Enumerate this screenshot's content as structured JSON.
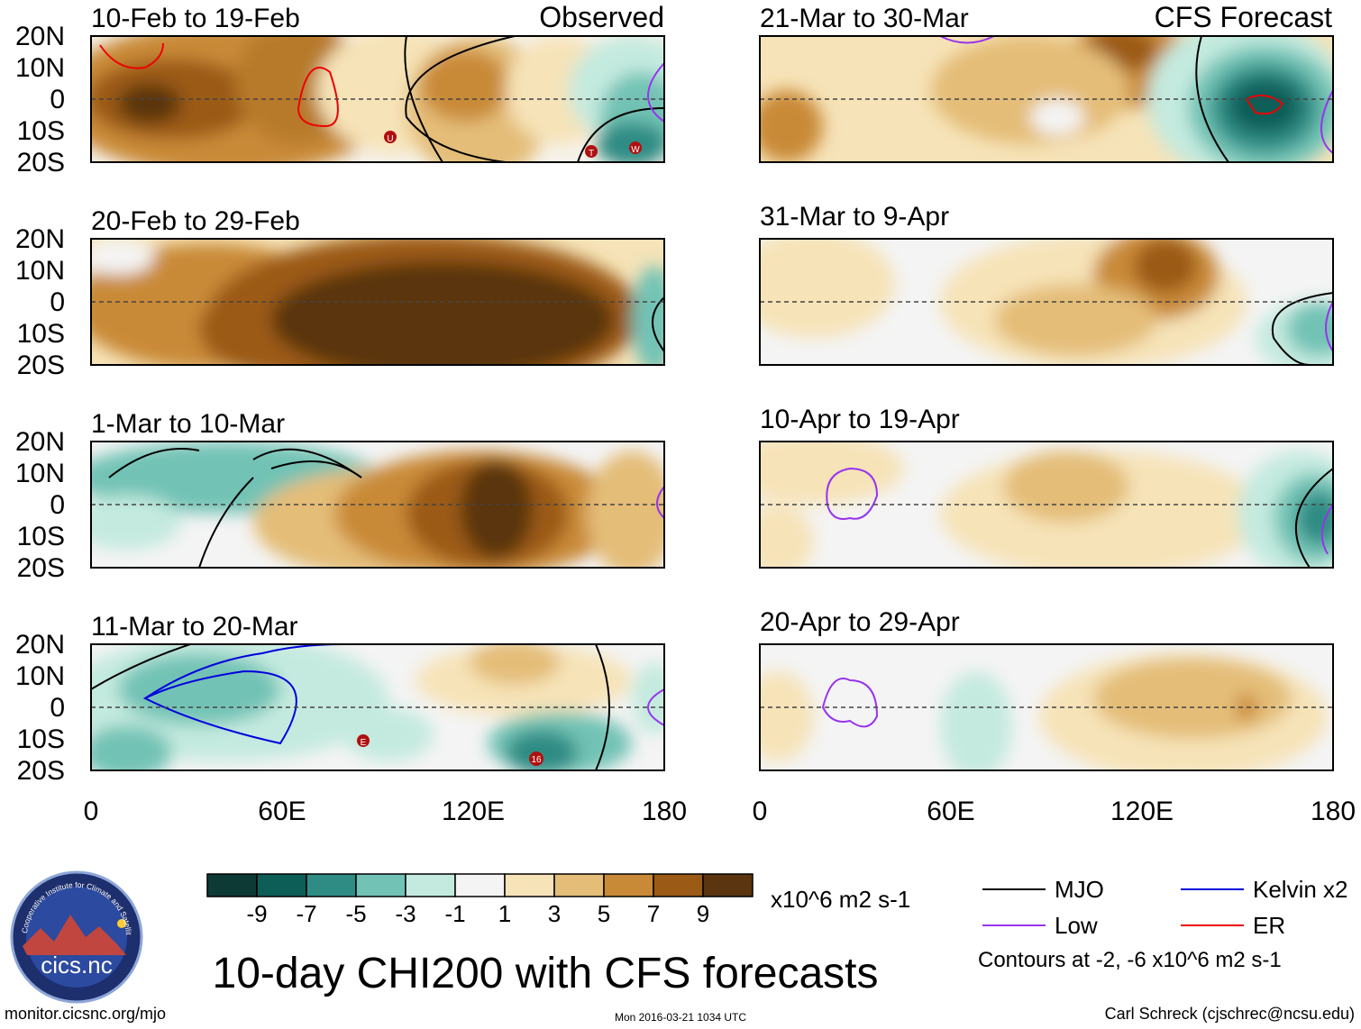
{
  "header": {
    "left_label": "Observed",
    "right_label": "CFS Forecast"
  },
  "panels": {
    "observed": [
      {
        "title": "10-Feb to 19-Feb"
      },
      {
        "title": "20-Feb to 29-Feb"
      },
      {
        "title": "1-Mar to 10-Mar"
      },
      {
        "title": "11-Mar to 20-Mar"
      }
    ],
    "forecast": [
      {
        "title": "21-Mar to 30-Mar"
      },
      {
        "title": "31-Mar to 9-Apr"
      },
      {
        "title": "10-Apr to 19-Apr"
      },
      {
        "title": "20-Apr to 29-Apr"
      }
    ]
  },
  "axes": {
    "y_ticks": [
      "20N",
      "10N",
      "0",
      "10S",
      "20S"
    ],
    "x_ticks": [
      "0",
      "60E",
      "120E",
      "180"
    ]
  },
  "storm_markers": {
    "p1": [
      {
        "label": "U"
      },
      {
        "label": "T"
      },
      {
        "label": "W"
      }
    ],
    "p4": [
      {
        "label": "E"
      },
      {
        "label": "16"
      }
    ]
  },
  "colorbar": {
    "labels": [
      "-9",
      "-7",
      "-5",
      "-3",
      "-1",
      "1",
      "3",
      "5",
      "7",
      "9"
    ],
    "colors": [
      "#0e3a36",
      "#0e5e58",
      "#2f8c84",
      "#72c3b5",
      "#c4eadf",
      "#f4f4f4",
      "#f6e3b8",
      "#e4bd78",
      "#c98a38",
      "#9b5a16",
      "#5a3510"
    ],
    "units": "x10^6 m2 s-1"
  },
  "legend": {
    "items": [
      {
        "label": "MJO",
        "color": "#000000"
      },
      {
        "label": "Kelvin x2",
        "color": "#0000dd"
      },
      {
        "label": "Low",
        "color": "#9933ee"
      },
      {
        "label": "ER",
        "color": "#ee0000"
      }
    ],
    "contours_note": "Contours at -2, -6 x10^6 m2 s-1"
  },
  "title": "10-day CHI200 with CFS forecasts",
  "logo": {
    "text": "cics.nc",
    "ring_text": "Cooperative Institute for Climate and Satellites"
  },
  "footer": {
    "url": "monitor.cicsnc.org/mjo",
    "timestamp": "Mon 2016-03-21 1034 UTC",
    "author": "Carl Schreck (cjschrec@ncsu.edu)"
  }
}
